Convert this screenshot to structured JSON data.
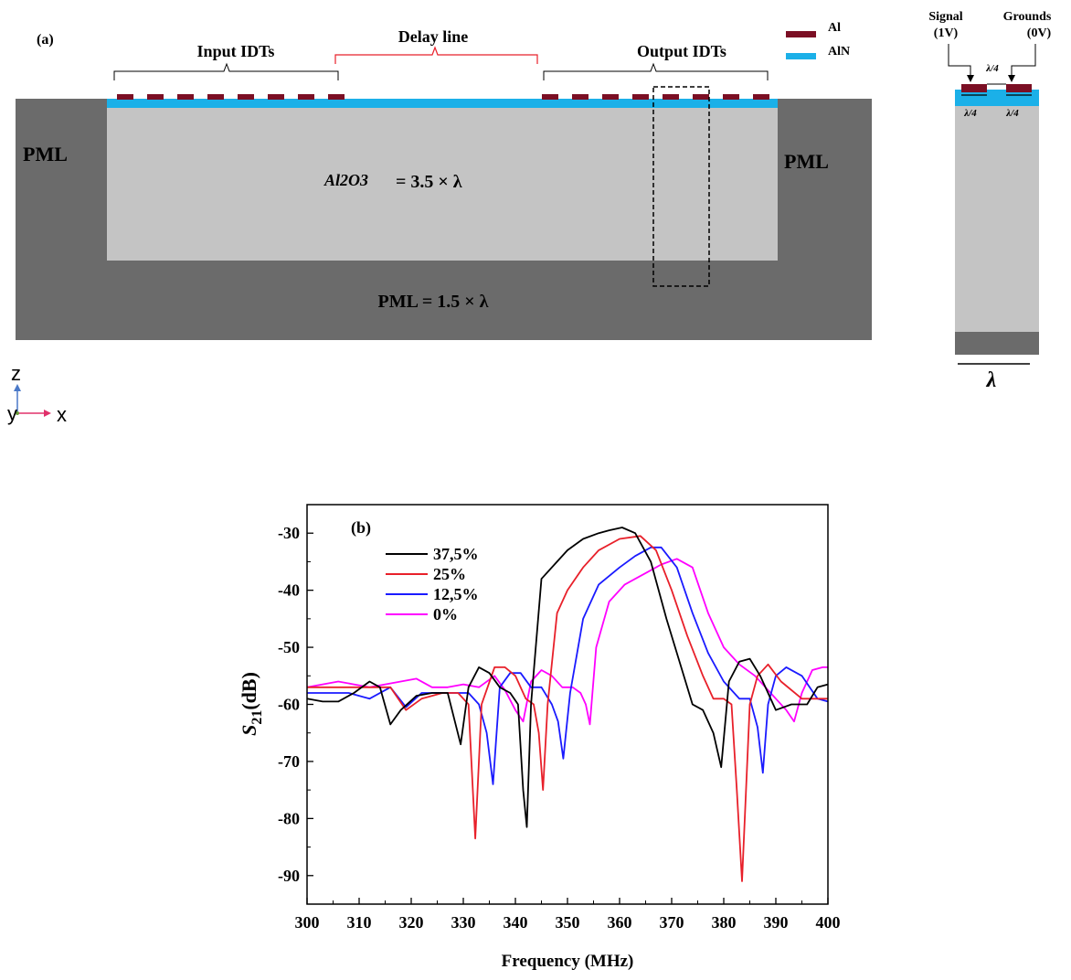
{
  "panel_a": {
    "label": "(a)",
    "legend": [
      {
        "name": "Al",
        "color": "#7b0f24"
      },
      {
        "name": "AlN",
        "color": "#1bb0e8"
      }
    ],
    "input_idts": "Input IDTs",
    "delay_line": "Delay line",
    "output_idts": "Output IDTs",
    "pml_left": "PML",
    "pml_right": "PML",
    "substrate_name": "Al2O3",
    "substrate_thickness": "= 3.5 × λ",
    "pml_bottom": "PML = 1.5 × λ",
    "colors": {
      "pml": "#6b6b6b",
      "substrate": "#c4c4c4",
      "delay_bracket": "#e8202a"
    }
  },
  "axes_glyph": {
    "z": "z",
    "y": "y",
    "x": "x"
  },
  "unit_cell": {
    "signal": "Signal",
    "signal_v": "(1V)",
    "grounds": "Grounds",
    "grounds_v": "(0V)",
    "gap": "λ/4",
    "width_left": "λ/4",
    "width_right": "λ/4",
    "period": "λ"
  },
  "chart_data": {
    "type": "line",
    "panel_label": "(b)",
    "xlabel": "Frequency (MHz)",
    "ylabel": "S21(dB)",
    "xlim": [
      300,
      400
    ],
    "ylim": [
      -95,
      -25
    ],
    "xticks": [
      300,
      310,
      320,
      330,
      340,
      350,
      360,
      370,
      380,
      390,
      400
    ],
    "yticks": [
      -30,
      -40,
      -50,
      -60,
      -70,
      -80,
      -90
    ],
    "grid": false,
    "legend_position": "top-left",
    "series": [
      {
        "name": "37,5%",
        "color": "#000000",
        "x": [
          300,
          303,
          306,
          309,
          312,
          314,
          316,
          318,
          321,
          324,
          327,
          329.5,
          331,
          333,
          335,
          337,
          339,
          340.5,
          341.5,
          342.2,
          343,
          345,
          348,
          350,
          353,
          356,
          358,
          360.5,
          363,
          366,
          369,
          372,
          374,
          376,
          378,
          379.5,
          381,
          383,
          385,
          387,
          390,
          393,
          396,
          398,
          400
        ],
        "y": [
          -59,
          -59.5,
          -59.5,
          -58,
          -56,
          -57,
          -63.5,
          -61,
          -58.5,
          -58,
          -58,
          -67,
          -57,
          -53.5,
          -54.5,
          -57,
          -58,
          -60,
          -75,
          -81.5,
          -60,
          -38,
          -35,
          -33,
          -31,
          -30,
          -29.5,
          -29,
          -30,
          -35,
          -45,
          -54,
          -60,
          -61,
          -65,
          -71,
          -56,
          -52.5,
          -52,
          -55,
          -61,
          -60,
          -60,
          -57,
          -56.5
        ]
      },
      {
        "name": "25%",
        "color": "#e8202a",
        "x": [
          300,
          304,
          308,
          312,
          316,
          319,
          322,
          326,
          329,
          331,
          332.3,
          333.5,
          336,
          338,
          340,
          342,
          343.5,
          344.5,
          345.3,
          346.2,
          348,
          350,
          353,
          356,
          360,
          364,
          367,
          370,
          373,
          376,
          378,
          380,
          381.5,
          382.5,
          383.5,
          385,
          386.5,
          388.5,
          391,
          395,
          400
        ],
        "y": [
          -57,
          -57,
          -57,
          -57,
          -57,
          -61,
          -59,
          -58,
          -58,
          -60,
          -83.5,
          -60,
          -53.5,
          -53.5,
          -55,
          -59,
          -60,
          -65,
          -75,
          -60,
          -44,
          -40,
          -36,
          -33,
          -31,
          -30.5,
          -33,
          -40,
          -48,
          -55,
          -59,
          -59,
          -60,
          -75,
          -91,
          -60,
          -55,
          -53,
          -56,
          -59,
          -59
        ]
      },
      {
        "name": "12,5%",
        "color": "#1a1aff",
        "x": [
          300,
          304,
          308,
          312,
          316,
          319,
          322,
          325,
          328,
          331,
          333,
          334.5,
          335.7,
          337,
          339,
          341,
          343,
          345,
          347,
          348.2,
          349.2,
          350.5,
          353,
          356,
          360,
          363,
          366,
          368,
          371,
          374,
          377,
          380,
          383,
          385,
          386.5,
          387.5,
          388.5,
          390,
          392,
          395,
          398,
          400
        ],
        "y": [
          -58,
          -58,
          -58,
          -59,
          -57,
          -60.5,
          -58,
          -58,
          -58,
          -58,
          -60,
          -65,
          -74,
          -57,
          -54.5,
          -54.5,
          -57,
          -57,
          -60,
          -63,
          -69.5,
          -58,
          -45,
          -39,
          -36,
          -34,
          -32.5,
          -32.5,
          -36,
          -44,
          -51,
          -56,
          -59,
          -59,
          -64,
          -72,
          -60,
          -55,
          -53.5,
          -55,
          -59,
          -59.5
        ]
      },
      {
        "name": "0%",
        "color": "#ff00ff",
        "x": [
          300,
          303,
          306,
          309,
          312,
          315,
          318,
          321,
          324,
          327,
          330,
          333,
          336,
          338,
          340,
          341.5,
          343,
          345,
          347,
          349,
          351,
          352.5,
          353.5,
          354.3,
          355.5,
          358,
          361,
          365,
          368,
          371,
          374,
          377,
          380,
          383,
          386,
          388,
          390,
          392,
          393.5,
          395,
          397,
          399,
          400
        ],
        "y": [
          -57,
          -56.5,
          -56,
          -56.5,
          -57,
          -56.5,
          -56,
          -55.5,
          -57,
          -57,
          -56.5,
          -57,
          -55,
          -57.5,
          -61,
          -63,
          -56,
          -54,
          -55,
          -57,
          -57,
          -58,
          -60,
          -63.5,
          -50,
          -42,
          -39,
          -37,
          -35.5,
          -34.5,
          -36,
          -44,
          -50,
          -53,
          -55,
          -57,
          -59,
          -61,
          -63,
          -58,
          -54,
          -53.5,
          -53.5
        ]
      }
    ]
  }
}
